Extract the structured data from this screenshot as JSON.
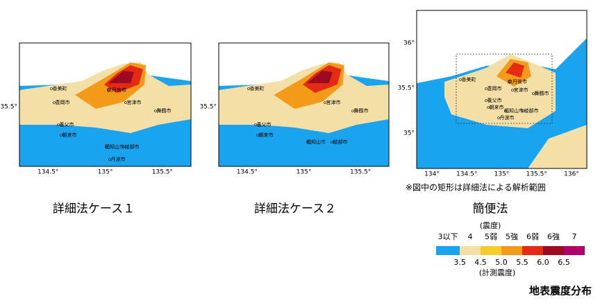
{
  "panels": [
    {
      "title": "詳細法ケース１",
      "x_ticks": [
        "134.5°",
        "135°",
        "135.5°"
      ],
      "y_ticks": [
        "35.5°"
      ],
      "cities": [
        "香美町",
        "京丹後市",
        "豊岡市",
        "宮津市",
        "舞鶴市",
        "養父市",
        "朝来市",
        "福知山市",
        "綾部市",
        "丹波市"
      ]
    },
    {
      "title": "詳細法ケース２",
      "x_ticks": [
        "134.5°",
        "135°",
        "135.5°"
      ],
      "y_ticks": [
        "35.5°"
      ],
      "cities": [
        "香美町",
        "宮津市",
        "舞鶴市",
        "養父市",
        "朝来市",
        "福知山市",
        "綾部市"
      ]
    },
    {
      "title": "簡便法",
      "x_ticks": [
        "134°",
        "134.5°",
        "135°",
        "135.5°",
        "136°"
      ],
      "y_ticks": [
        "36°",
        "35.5°",
        "35°"
      ],
      "cities": [
        "香美町",
        "京丹後市",
        "豊岡市",
        "宮津市",
        "舞鶴市",
        "養父市",
        "朝来市",
        "福知山市",
        "綾部市",
        "丹波市"
      ],
      "note": "※図中の矩形は詳細法による解析範囲"
    }
  ],
  "legend": {
    "class_title": "(震度)",
    "measure_title": "(計測震度)",
    "classes": [
      {
        "label": "3以下",
        "color": "#1aa3ee"
      },
      {
        "label": "4",
        "color": "#f4dfa6"
      },
      {
        "label": "5弱",
        "color": "#f6cc2a"
      },
      {
        "label": "5強",
        "color": "#f39a18"
      },
      {
        "label": "6弱",
        "color": "#e52a14"
      },
      {
        "label": "6強",
        "color": "#9c0b22"
      },
      {
        "label": "7",
        "color": "#b1006a"
      }
    ],
    "boundaries": [
      "3.5",
      "4.5",
      "5.0",
      "5.5",
      "6.0",
      "6.5"
    ]
  },
  "caption": "地表震度分布"
}
